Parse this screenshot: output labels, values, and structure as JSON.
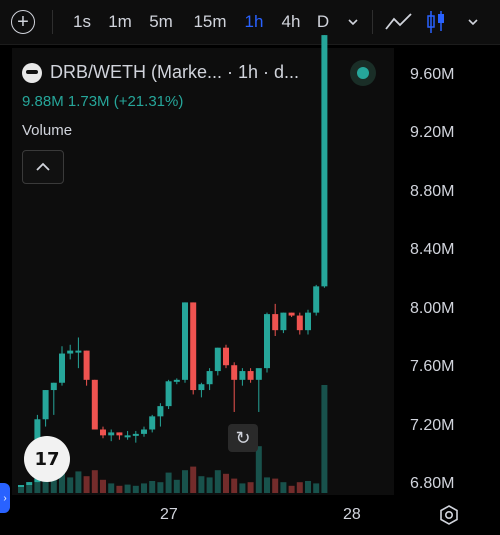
{
  "toolbar": {
    "intervals": [
      "1s",
      "1m",
      "5m",
      "15m",
      "1h",
      "4h",
      "D"
    ],
    "active_interval": "1h",
    "icons": [
      "add-icon",
      "chevron-down-icon",
      "line-chart-icon",
      "candles-icon",
      "gear-icon"
    ]
  },
  "legend": {
    "title": "DRB/WETH (Marke... · 1h · d...",
    "values": "9.88M  1.73M (+21.31%)",
    "volume_label": "Volume"
  },
  "colors": {
    "up": "#26a69a",
    "down": "#ef5350",
    "accent": "#2962ff"
  },
  "price_axis": [
    "9.60M",
    "9.20M",
    "8.80M",
    "8.40M",
    "8.00M",
    "7.60M",
    "7.20M",
    "6.80M"
  ],
  "time_axis": [
    "27",
    "28"
  ],
  "chart_data": {
    "type": "candlestick",
    "price_min": 6.78,
    "price_max": 9.72,
    "candles": [
      [
        6.8,
        6.8,
        6.79,
        6.8,
        0.5
      ],
      [
        6.8,
        6.82,
        6.8,
        6.82,
        0.7
      ],
      [
        6.82,
        7.28,
        6.82,
        7.25,
        1.6
      ],
      [
        7.25,
        7.45,
        7.2,
        7.45,
        2.0
      ],
      [
        7.45,
        7.5,
        7.28,
        7.5,
        1.7
      ],
      [
        7.5,
        7.75,
        7.48,
        7.7,
        2.4
      ],
      [
        7.7,
        7.76,
        7.66,
        7.72,
        1.3
      ],
      [
        7.72,
        7.81,
        7.6,
        7.72,
        1.8
      ],
      [
        7.72,
        7.72,
        7.48,
        7.52,
        1.4
      ],
      [
        7.52,
        7.52,
        7.18,
        7.18,
        1.9
      ],
      [
        7.18,
        7.2,
        7.12,
        7.14,
        1.1
      ],
      [
        7.14,
        7.18,
        7.1,
        7.16,
        0.8
      ],
      [
        7.16,
        7.16,
        7.11,
        7.14,
        0.6
      ],
      [
        7.14,
        7.17,
        7.11,
        7.14,
        0.7
      ],
      [
        7.14,
        7.17,
        7.09,
        7.15,
        0.6
      ],
      [
        7.15,
        7.2,
        7.13,
        7.18,
        0.8
      ],
      [
        7.18,
        7.28,
        7.16,
        7.27,
        1.0
      ],
      [
        7.27,
        7.36,
        7.2,
        7.34,
        0.9
      ],
      [
        7.34,
        7.52,
        7.32,
        7.51,
        1.7
      ],
      [
        7.51,
        7.53,
        7.49,
        7.52,
        1.1
      ],
      [
        7.52,
        8.05,
        7.5,
        8.05,
        1.9
      ],
      [
        8.05,
        8.05,
        7.42,
        7.45,
        2.2
      ],
      [
        7.45,
        7.5,
        7.4,
        7.49,
        1.4
      ],
      [
        7.49,
        7.6,
        7.45,
        7.58,
        1.3
      ],
      [
        7.58,
        7.74,
        7.55,
        7.74,
        1.9
      ],
      [
        7.74,
        7.76,
        7.6,
        7.62,
        1.6
      ],
      [
        7.62,
        7.64,
        7.3,
        7.52,
        1.2
      ],
      [
        7.52,
        7.6,
        7.48,
        7.58,
        0.8
      ],
      [
        7.58,
        7.6,
        7.5,
        7.52,
        0.9
      ],
      [
        7.52,
        7.58,
        7.3,
        7.6,
        3.9
      ],
      [
        7.6,
        7.98,
        7.57,
        7.97,
        1.3
      ],
      [
        7.97,
        8.04,
        7.82,
        7.86,
        1.2
      ],
      [
        7.86,
        7.98,
        7.84,
        7.98,
        0.9
      ],
      [
        7.98,
        7.98,
        7.95,
        7.96,
        0.6
      ],
      [
        7.96,
        7.98,
        7.83,
        7.86,
        0.9
      ],
      [
        7.86,
        8.0,
        7.83,
        7.98,
        1.0
      ],
      [
        7.98,
        8.17,
        7.96,
        8.16,
        0.8
      ],
      [
        8.16,
        9.88,
        8.15,
        9.88,
        9.0
      ]
    ]
  }
}
